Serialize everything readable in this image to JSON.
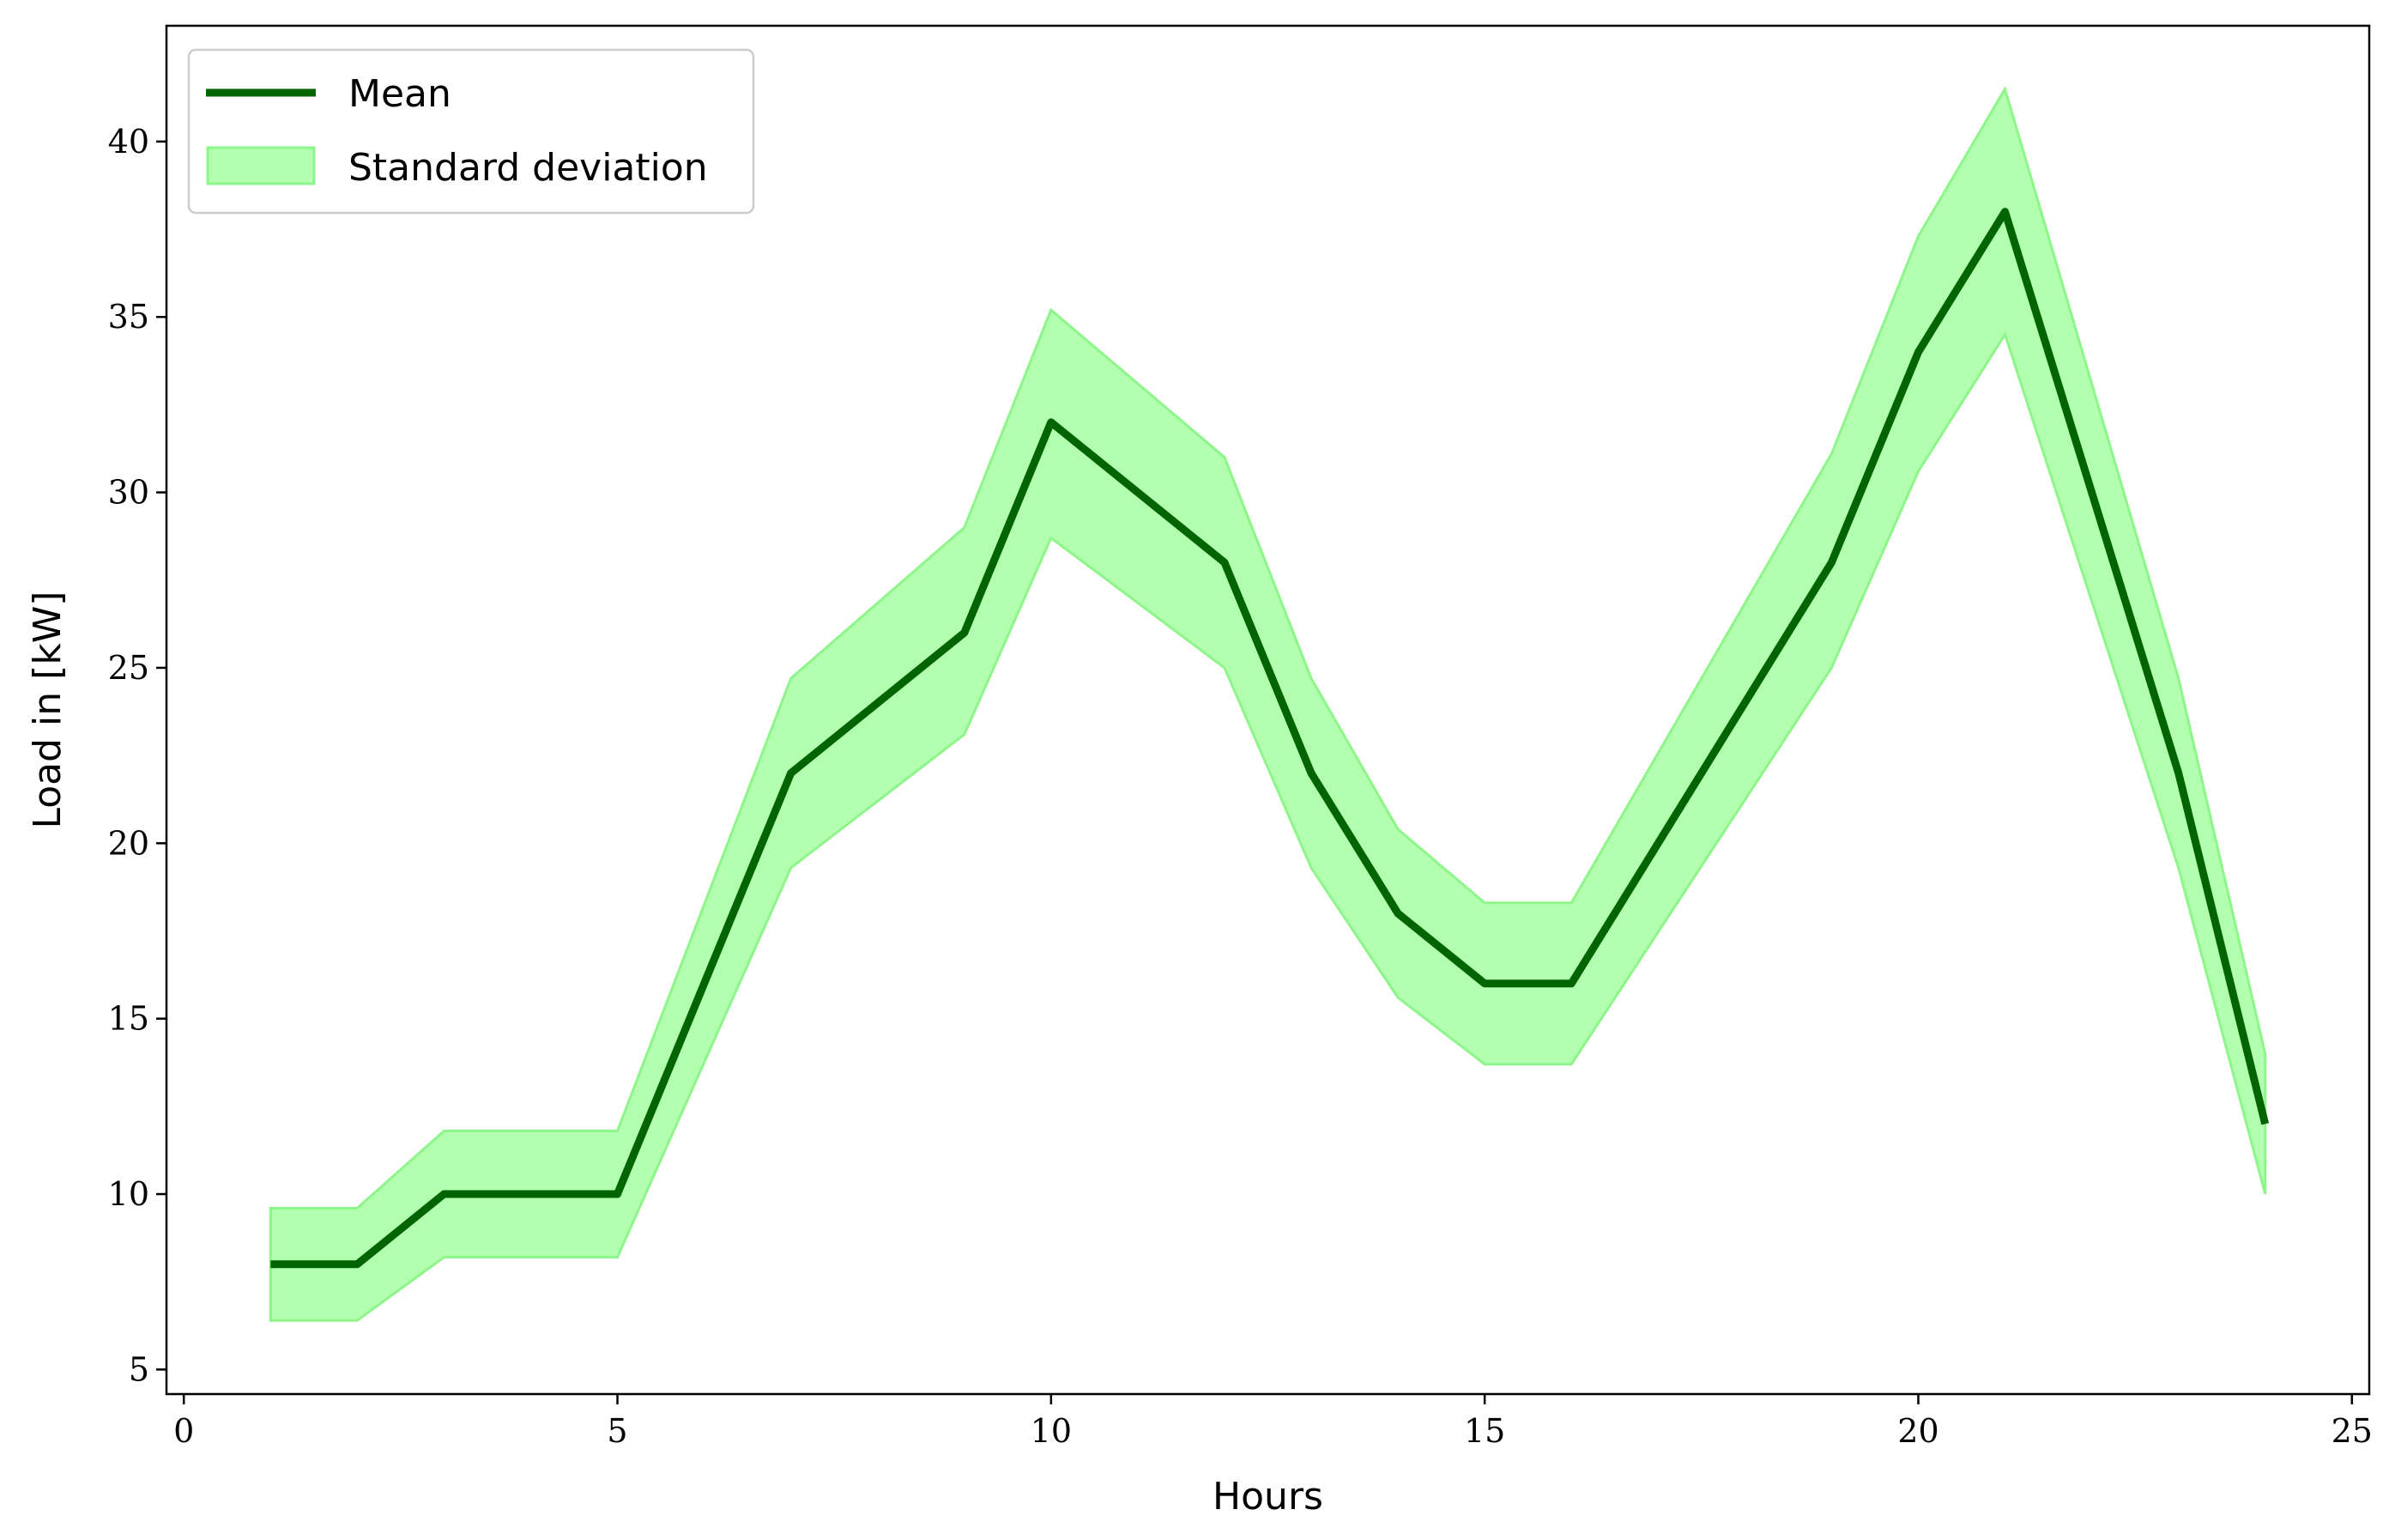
{
  "chart_data": {
    "type": "line",
    "title": "",
    "xlabel": "Hours",
    "ylabel": "Load in [kW]",
    "xlim": [
      -0.2,
      25.2
    ],
    "ylim": [
      4.3,
      43.3
    ],
    "xticks": [
      0,
      5,
      10,
      15,
      20,
      25
    ],
    "yticks": [
      5,
      10,
      15,
      20,
      25,
      30,
      35,
      40
    ],
    "grid": false,
    "legend_position": "top-left",
    "colors": {
      "mean": "#006400",
      "band_fill": "#b3ffb0",
      "band_edge": "#8ef58a"
    },
    "x": [
      1,
      2,
      3,
      5,
      7,
      9,
      10,
      12,
      13,
      14,
      15,
      16,
      19,
      20,
      21,
      23,
      24
    ],
    "series": [
      {
        "name": "Mean",
        "values": [
          8,
          8,
          10,
          10,
          22,
          26,
          32,
          28,
          22,
          18,
          16,
          16,
          28,
          34,
          38,
          22,
          12
        ]
      },
      {
        "name": "Standard deviation",
        "upper": [
          9.6,
          9.6,
          11.8,
          11.8,
          24.7,
          29.0,
          35.2,
          31.0,
          24.7,
          20.4,
          18.3,
          18.3,
          31.1,
          37.3,
          41.5,
          24.7,
          14.0
        ],
        "lower": [
          6.4,
          6.4,
          8.2,
          8.2,
          19.3,
          23.1,
          28.7,
          25.0,
          19.3,
          15.6,
          13.7,
          13.7,
          25.0,
          30.6,
          34.5,
          19.3,
          10.0
        ]
      }
    ]
  }
}
